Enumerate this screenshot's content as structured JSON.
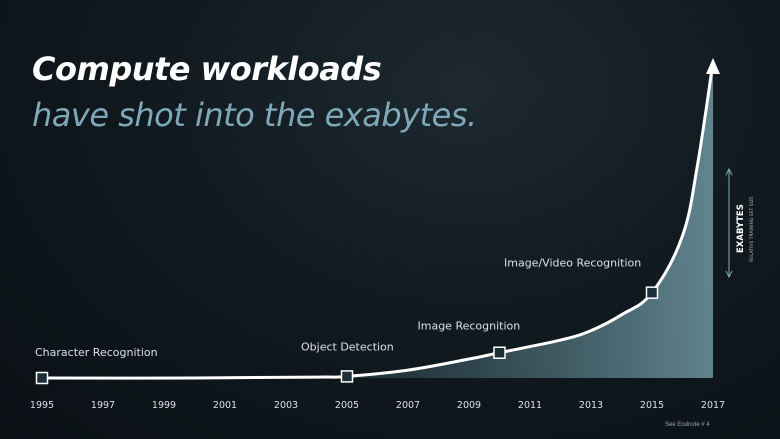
{
  "slide": {
    "title_line1": "Compute workloads",
    "title_line2": "have shot into the exabytes.",
    "footnote": "See Endnote # 4"
  },
  "chart_data": {
    "type": "area",
    "title": "",
    "xlabel": "",
    "ylabel": "EXABYTES",
    "ylabel_sub": "RELATIVE TRAINING SET SIZE",
    "ylabel_position": "right",
    "x_ticks": [
      "1995",
      "1997",
      "1999",
      "2001",
      "2003",
      "2005",
      "2007",
      "2009",
      "2011",
      "2013",
      "2015",
      "2017"
    ],
    "xlim": [
      1995,
      2017
    ],
    "ylim": [
      0,
      100
    ],
    "y_axis_values_shown": false,
    "curve": [
      {
        "x": 1995,
        "y": 0
      },
      {
        "x": 2000,
        "y": 0
      },
      {
        "x": 2004,
        "y": 0.3
      },
      {
        "x": 2005,
        "y": 0.5
      },
      {
        "x": 2007,
        "y": 2.5
      },
      {
        "x": 2009,
        "y": 6
      },
      {
        "x": 2010,
        "y": 8
      },
      {
        "x": 2012,
        "y": 12
      },
      {
        "x": 2013,
        "y": 15
      },
      {
        "x": 2014,
        "y": 20
      },
      {
        "x": 2015,
        "y": 27
      },
      {
        "x": 2016,
        "y": 45
      },
      {
        "x": 2016.5,
        "y": 68
      },
      {
        "x": 2017,
        "y": 100
      }
    ],
    "milestones": [
      {
        "x": 1995,
        "y": 0,
        "label": "Character Recognition"
      },
      {
        "x": 2005,
        "y": 0.5,
        "label": "Object Detection"
      },
      {
        "x": 2010,
        "y": 8,
        "label": "Image Recognition"
      },
      {
        "x": 2015,
        "y": 27,
        "label": "Image/Video Recognition"
      }
    ],
    "colors": {
      "line": "#ffffff",
      "fill": "#4f7580",
      "marker_fill": "#1b3038",
      "marker_stroke": "#ffffff",
      "axis_arrow": "#7fa9b8"
    }
  }
}
